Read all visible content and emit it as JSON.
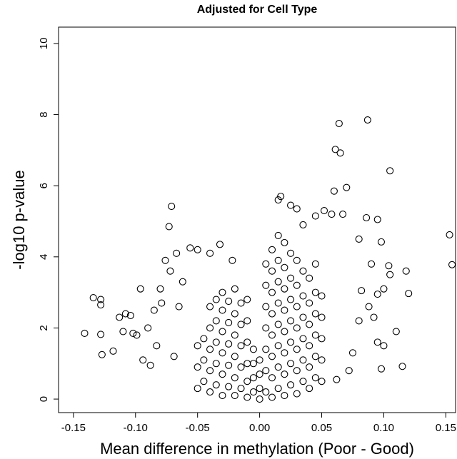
{
  "chart_data": {
    "type": "scatter",
    "title": "Adjusted for Cell Type",
    "x_label": "Mean difference in methylation (Poor - Good)",
    "y_label": "-log10 p-value",
    "xlim": [
      -0.162,
      0.159
    ],
    "ylim": [
      -0.38,
      10.46
    ],
    "xticks": [
      -0.15,
      {
        "value": -0.1,
        "label": "-0.10"
      },
      {
        "value": -0.05,
        "label": "-0.05"
      },
      {
        "value": 0,
        "label": "0.00"
      },
      {
        "value": 0.05,
        "label": "0.05"
      },
      {
        "value": 0.1,
        "label": "0.10"
      },
      {
        "value": 0.15,
        "label": "0.15"
      }
    ],
    "yticks": [
      0,
      2,
      4,
      6,
      8,
      10
    ],
    "color": "#000000",
    "x": [
      -0.141,
      -0.134,
      -0.128,
      -0.128,
      -0.128,
      -0.127,
      -0.113,
      -0.108,
      -0.104,
      -0.102,
      -0.099,
      -0.096,
      -0.094,
      -0.09,
      -0.085,
      -0.083,
      -0.079,
      -0.076,
      -0.073,
      -0.071,
      -0.072,
      -0.069,
      -0.067,
      -0.065,
      -0.056,
      -0.05,
      -0.04,
      -0.032,
      -0.022,
      -0.118,
      -0.11,
      -0.088,
      -0.08,
      -0.062,
      0.087,
      0.064,
      0.061,
      0.065,
      0.105,
      0.153,
      0.155,
      0.095,
      0.086,
      0.098,
      0.118,
      0.12,
      0.104,
      0.105,
      0.11,
      0.095,
      0.098,
      0.115,
      0.07,
      0.06,
      0.052,
      0.058,
      0.067,
      0.08,
      0.09,
      0.1,
      0.095,
      0.088,
      0.08,
      0.075,
      0.072,
      0.062,
      0.017,
      0.015,
      0.025,
      0.03,
      0.045,
      0.035,
      0.082,
      0.092,
      0.1,
      -0.05,
      -0.05,
      -0.05,
      -0.045,
      -0.045,
      -0.045,
      -0.04,
      -0.04,
      -0.04,
      -0.04,
      -0.04,
      -0.035,
      -0.035,
      -0.035,
      -0.035,
      -0.035,
      -0.03,
      -0.03,
      -0.03,
      -0.03,
      -0.03,
      -0.03,
      -0.025,
      -0.025,
      -0.025,
      -0.025,
      -0.025,
      -0.02,
      -0.02,
      -0.02,
      -0.02,
      -0.02,
      -0.02,
      -0.015,
      -0.015,
      -0.015,
      -0.015,
      -0.015,
      -0.01,
      -0.01,
      -0.01,
      -0.01,
      -0.01,
      -0.01,
      -0.005,
      -0.005,
      -0.005,
      -0.005,
      0,
      0,
      0,
      0,
      0.005,
      0.005,
      0.005,
      0.005,
      0.005,
      0.005,
      0.005,
      0.01,
      0.01,
      0.01,
      0.01,
      0.01,
      0.01,
      0.01,
      0.01,
      0.015,
      0.015,
      0.015,
      0.015,
      0.015,
      0.015,
      0.015,
      0.015,
      0.02,
      0.02,
      0.02,
      0.02,
      0.02,
      0.02,
      0.02,
      0.02,
      0.025,
      0.025,
      0.025,
      0.025,
      0.025,
      0.025,
      0.025,
      0.03,
      0.03,
      0.03,
      0.03,
      0.03,
      0.03,
      0.03,
      0.035,
      0.035,
      0.035,
      0.035,
      0.035,
      0.035,
      0.04,
      0.04,
      0.04,
      0.04,
      0.04,
      0.04,
      0.045,
      0.045,
      0.045,
      0.045,
      0.045,
      0.045,
      0.05,
      0.05,
      0.05,
      0.05,
      0.05
    ],
    "values": [
      1.85,
      2.85,
      2.8,
      2.65,
      1.82,
      1.25,
      2.3,
      2.4,
      2.35,
      1.85,
      1.8,
      3.1,
      1.1,
      2.0,
      2.5,
      1.5,
      2.7,
      3.9,
      4.85,
      5.42,
      3.6,
      1.2,
      4.1,
      2.6,
      4.25,
      4.2,
      4.1,
      4.35,
      3.9,
      1.35,
      1.9,
      0.95,
      3.1,
      3.3,
      7.85,
      7.75,
      7.02,
      6.92,
      6.42,
      4.62,
      3.78,
      5.05,
      5.1,
      4.42,
      3.6,
      2.97,
      3.75,
      3.5,
      1.9,
      1.6,
      0.85,
      0.92,
      5.95,
      5.85,
      5.3,
      5.2,
      5.2,
      4.5,
      3.8,
      3.1,
      2.95,
      2.6,
      2.2,
      1.3,
      0.8,
      0.55,
      5.7,
      5.6,
      5.45,
      5.35,
      5.15,
      4.9,
      3.05,
      2.3,
      1.5,
      0.3,
      0.9,
      1.5,
      0.5,
      1.1,
      1.7,
      0.2,
      0.8,
      1.4,
      2.0,
      2.6,
      0.4,
      1.0,
      1.6,
      2.2,
      2.8,
      0.1,
      0.7,
      1.3,
      1.9,
      2.5,
      3.0,
      0.35,
      0.95,
      1.55,
      2.15,
      2.75,
      0.1,
      0.6,
      1.2,
      1.8,
      2.4,
      3.1,
      0.3,
      0.9,
      1.5,
      2.1,
      2.7,
      0.05,
      0.5,
      1.0,
      1.6,
      2.2,
      2.8,
      0.2,
      0.6,
      1.0,
      1.4,
      0,
      0.3,
      0.7,
      1.1,
      0.2,
      0.8,
      1.4,
      2.0,
      2.6,
      3.2,
      3.8,
      0.05,
      0.6,
      1.2,
      1.8,
      2.4,
      3.0,
      3.6,
      4.2,
      0.3,
      0.9,
      1.5,
      2.1,
      2.7,
      3.3,
      3.9,
      4.6,
      0.1,
      0.7,
      1.3,
      1.9,
      2.5,
      3.1,
      3.7,
      4.4,
      0.4,
      1.0,
      1.6,
      2.2,
      2.8,
      3.4,
      4.1,
      0.15,
      0.8,
      1.4,
      2.0,
      2.6,
      3.2,
      3.9,
      0.5,
      1.1,
      1.7,
      2.3,
      2.9,
      3.6,
      0.3,
      0.9,
      1.5,
      2.1,
      2.7,
      3.4,
      0.6,
      1.2,
      1.8,
      2.4,
      3.0,
      3.8,
      0.5,
      1.1,
      1.7,
      2.3,
      2.9
    ]
  }
}
